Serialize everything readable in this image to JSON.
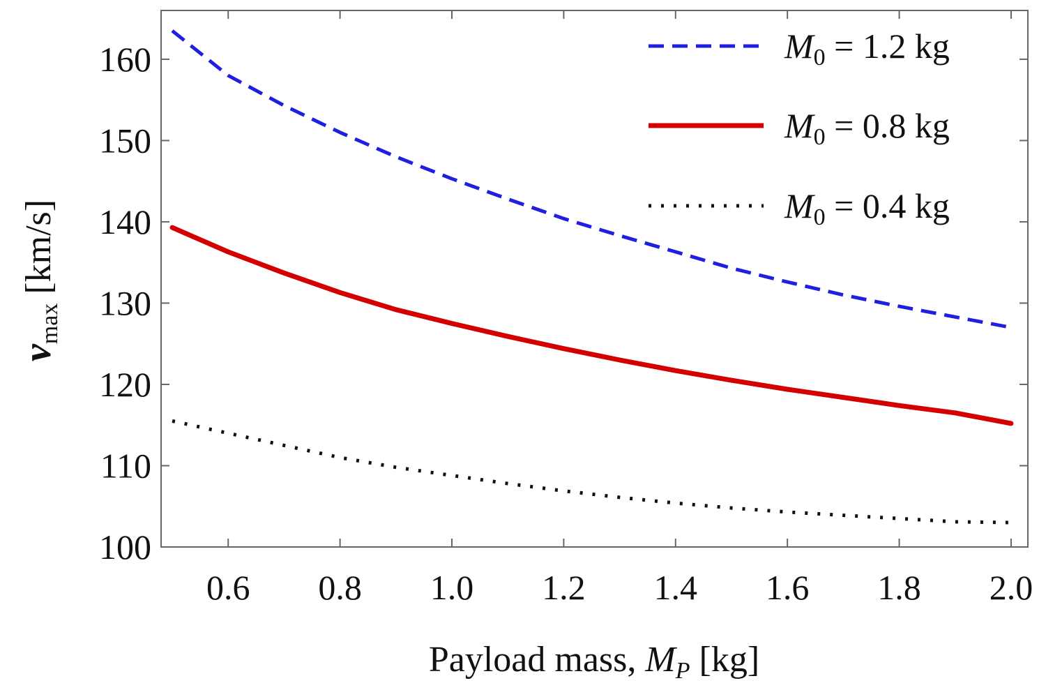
{
  "chart_data": {
    "type": "line",
    "title": "",
    "xlabel": {
      "main": "Payload mass, ",
      "sym": "M",
      "sub": "P",
      "unit": " [kg]"
    },
    "ylabel": {
      "sym": "v",
      "sub": "max",
      "unit": " [km/s]"
    },
    "xlim": [
      0.48,
      2.03
    ],
    "ylim": [
      100,
      166
    ],
    "xticks": [
      0.6,
      0.8,
      1.0,
      1.2,
      1.4,
      1.6,
      1.8,
      2.0
    ],
    "xtick_labels": [
      "0.6",
      "0.8",
      "1.0",
      "1.2",
      "1.4",
      "1.6",
      "1.8",
      "2.0"
    ],
    "yticks": [
      100,
      110,
      120,
      130,
      140,
      150,
      160
    ],
    "ytick_labels": [
      "100",
      "110",
      "120",
      "130",
      "140",
      "150",
      "160"
    ],
    "grid": false,
    "legend_position": "top-right",
    "x": [
      0.5,
      0.6,
      0.7,
      0.8,
      0.9,
      1.0,
      1.1,
      1.2,
      1.3,
      1.4,
      1.5,
      1.6,
      1.7,
      1.8,
      1.9,
      2.0
    ],
    "series": [
      {
        "name": "M0 = 1.2 kg",
        "legend": {
          "sym": "M",
          "sub": "0",
          "rest": " = 1.2 kg"
        },
        "style": "dashed",
        "color": "#1f1fe0",
        "values": [
          163.5,
          158.0,
          154.3,
          151.0,
          148.0,
          145.3,
          142.8,
          140.4,
          138.3,
          136.3,
          134.3,
          132.6,
          131.0,
          129.6,
          128.3,
          127.0
        ]
      },
      {
        "name": "M0 = 0.8 kg",
        "legend": {
          "sym": "M",
          "sub": "0",
          "rest": " = 0.8 kg"
        },
        "style": "solid",
        "color": "#d40000",
        "values": [
          139.3,
          136.3,
          133.7,
          131.3,
          129.2,
          127.5,
          125.9,
          124.4,
          123.0,
          121.7,
          120.5,
          119.4,
          118.4,
          117.4,
          116.5,
          115.2
        ]
      },
      {
        "name": "M0 = 0.4 kg",
        "legend": {
          "sym": "M",
          "sub": "0",
          "rest": " = 0.4 kg"
        },
        "style": "dotted",
        "color": "#111111",
        "values": [
          115.5,
          114.0,
          112.5,
          111.0,
          109.8,
          108.8,
          107.8,
          106.9,
          106.1,
          105.4,
          104.8,
          104.3,
          103.9,
          103.5,
          103.1,
          103.0
        ]
      }
    ]
  }
}
